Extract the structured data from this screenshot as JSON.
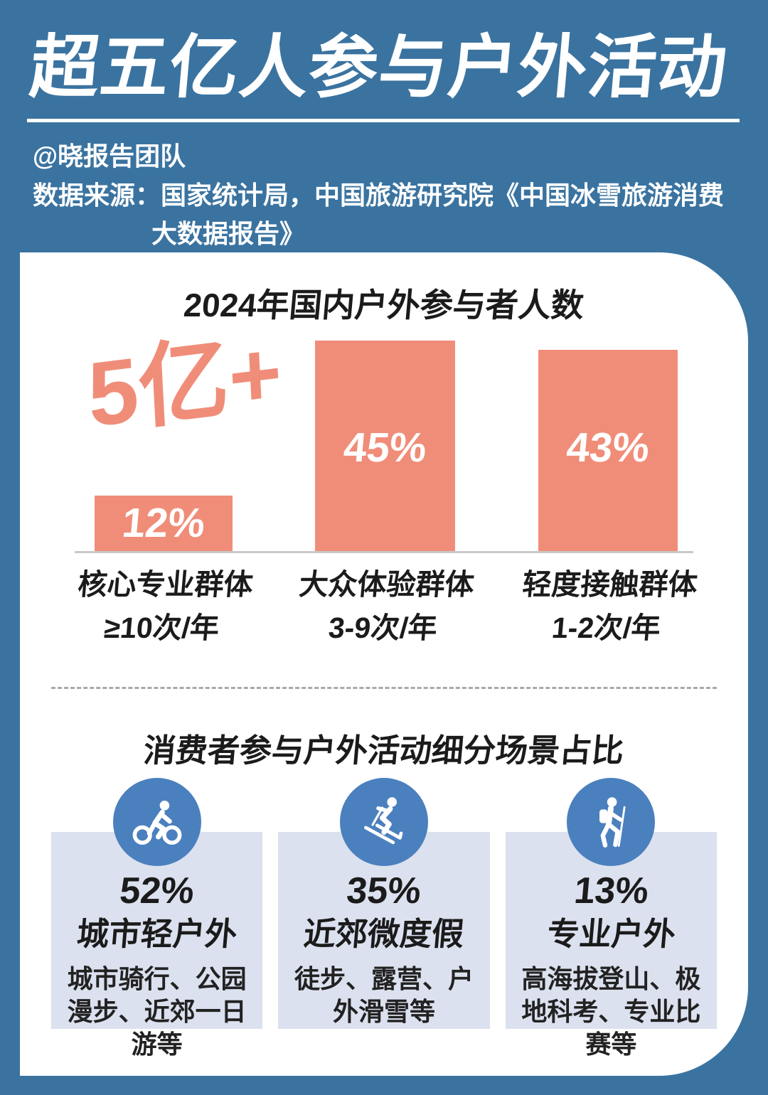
{
  "header": {
    "title": "超五亿人参与户外活动",
    "author": "@晓报告团队",
    "source_line1": "数据来源：国家统计局，中国旅游研究院《中国冰雪旅游消费",
    "source_line2": "大数据报告》"
  },
  "chart_data": {
    "type": "bar",
    "title": "2024年国内户外参与者人数",
    "highlight_label": "5亿+",
    "categories": [
      "核心专业群体",
      "大众体验群体",
      "轻度接触群体"
    ],
    "sub_categories": [
      "≥10次/年",
      "3-9次/年",
      "1-2次/年"
    ],
    "values": [
      12,
      45,
      43
    ],
    "value_labels": [
      "12%",
      "45%",
      "43%"
    ],
    "unit": "%",
    "ylim": [
      0,
      50
    ],
    "grid": false,
    "legend": "none",
    "bar_color": "#F08D79"
  },
  "segments": {
    "title": "消费者参与户外活动细分场景占比",
    "items": [
      {
        "icon": "cyclist-icon",
        "percent": "52%",
        "name": "城市轻户外",
        "desc": "城市骑行、公园漫步、近郊一日游等"
      },
      {
        "icon": "skier-icon",
        "percent": "35%",
        "name": "近郊微度假",
        "desc": "徒步、露营、户外滑雪等"
      },
      {
        "icon": "hiker-icon",
        "percent": "13%",
        "name": "专业户外",
        "desc": "高海拔登山、极地科考、专业比赛等"
      }
    ]
  },
  "colors": {
    "background": "#3A73A0",
    "bar": "#F08D79",
    "card": "#FFFFFF",
    "segment_card_bg": "#DCE1EF",
    "icon_circle": "#4B80BE",
    "text_dark": "#1B1B1B",
    "text_light": "#FFFFFF"
  }
}
